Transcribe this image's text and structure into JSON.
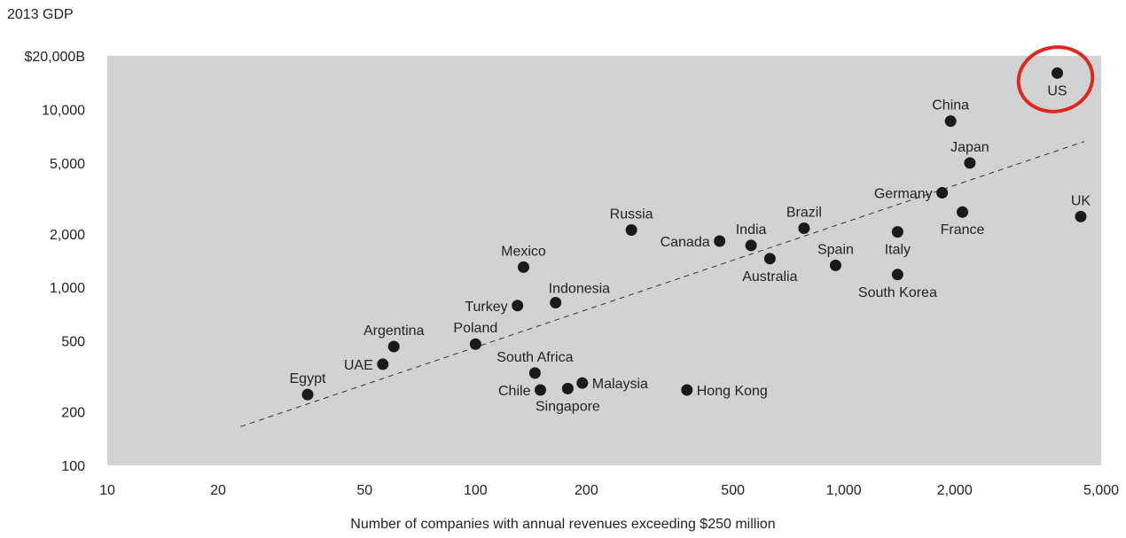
{
  "chart_data": {
    "type": "scatter",
    "ylabel": "2013 GDP",
    "xlabel": "Number of companies with annual revenues exceeding $250 million",
    "x_scale": "log",
    "y_scale": "log",
    "xlim": [
      10,
      5000
    ],
    "ylim": [
      100,
      20000
    ],
    "x_ticks": [
      10,
      20,
      50,
      100,
      200,
      500,
      1000,
      2000,
      5000
    ],
    "x_tick_labels": [
      "10",
      "20",
      "50",
      "100",
      "200",
      "500",
      "1,000",
      "2,000",
      "5,000"
    ],
    "y_ticks": [
      100,
      200,
      500,
      1000,
      2000,
      5000,
      10000,
      20000
    ],
    "y_tick_labels": [
      "100",
      "200",
      "500",
      "1,000",
      "2,000",
      "5,000",
      "10,000",
      "$20,000B"
    ],
    "grid": false,
    "plot_background": "#d1d2d4",
    "point_color": "#1a1a1a",
    "highlight": {
      "country": "US",
      "color": "#e1261c"
    },
    "trendline": {
      "style": "dashed",
      "from": [
        23,
        165
      ],
      "to": [
        4500,
        6600
      ]
    },
    "points": [
      {
        "label": "US",
        "x": 3800,
        "y": 16000,
        "label_pos": "below"
      },
      {
        "label": "China",
        "x": 1950,
        "y": 8600,
        "label_pos": "above"
      },
      {
        "label": "Japan",
        "x": 2200,
        "y": 5000,
        "label_pos": "above"
      },
      {
        "label": "Germany",
        "x": 1850,
        "y": 3400,
        "label_pos": "left"
      },
      {
        "label": "France",
        "x": 2100,
        "y": 2650,
        "label_pos": "below"
      },
      {
        "label": "UK",
        "x": 4400,
        "y": 2500,
        "label_pos": "above"
      },
      {
        "label": "Brazil",
        "x": 780,
        "y": 2150,
        "label_pos": "above"
      },
      {
        "label": "Italy",
        "x": 1400,
        "y": 2050,
        "label_pos": "below"
      },
      {
        "label": "Russia",
        "x": 265,
        "y": 2100,
        "label_pos": "above"
      },
      {
        "label": "Canada",
        "x": 460,
        "y": 1820,
        "label_pos": "left"
      },
      {
        "label": "India",
        "x": 560,
        "y": 1720,
        "label_pos": "above"
      },
      {
        "label": "Australia",
        "x": 630,
        "y": 1450,
        "label_pos": "below"
      },
      {
        "label": "Spain",
        "x": 950,
        "y": 1330,
        "label_pos": "above"
      },
      {
        "label": "South Korea",
        "x": 1400,
        "y": 1180,
        "label_pos": "below"
      },
      {
        "label": "Mexico",
        "x": 135,
        "y": 1300,
        "label_pos": "above"
      },
      {
        "label": "Turkey",
        "x": 130,
        "y": 790,
        "label_pos": "left"
      },
      {
        "label": "Indonesia",
        "x": 165,
        "y": 820,
        "label_pos": "above-right"
      },
      {
        "label": "Argentina",
        "x": 60,
        "y": 465,
        "label_pos": "above"
      },
      {
        "label": "Poland",
        "x": 100,
        "y": 480,
        "label_pos": "above"
      },
      {
        "label": "UAE",
        "x": 56,
        "y": 370,
        "label_pos": "left"
      },
      {
        "label": "South Africa",
        "x": 145,
        "y": 330,
        "label_pos": "above"
      },
      {
        "label": "Malaysia",
        "x": 195,
        "y": 290,
        "label_pos": "right"
      },
      {
        "label": "Chile",
        "x": 150,
        "y": 265,
        "label_pos": "left"
      },
      {
        "label": "Singapore",
        "x": 178,
        "y": 270,
        "label_pos": "below"
      },
      {
        "label": "Hong Kong",
        "x": 375,
        "y": 265,
        "label_pos": "right"
      },
      {
        "label": "Egypt",
        "x": 35,
        "y": 250,
        "label_pos": "above"
      }
    ]
  }
}
